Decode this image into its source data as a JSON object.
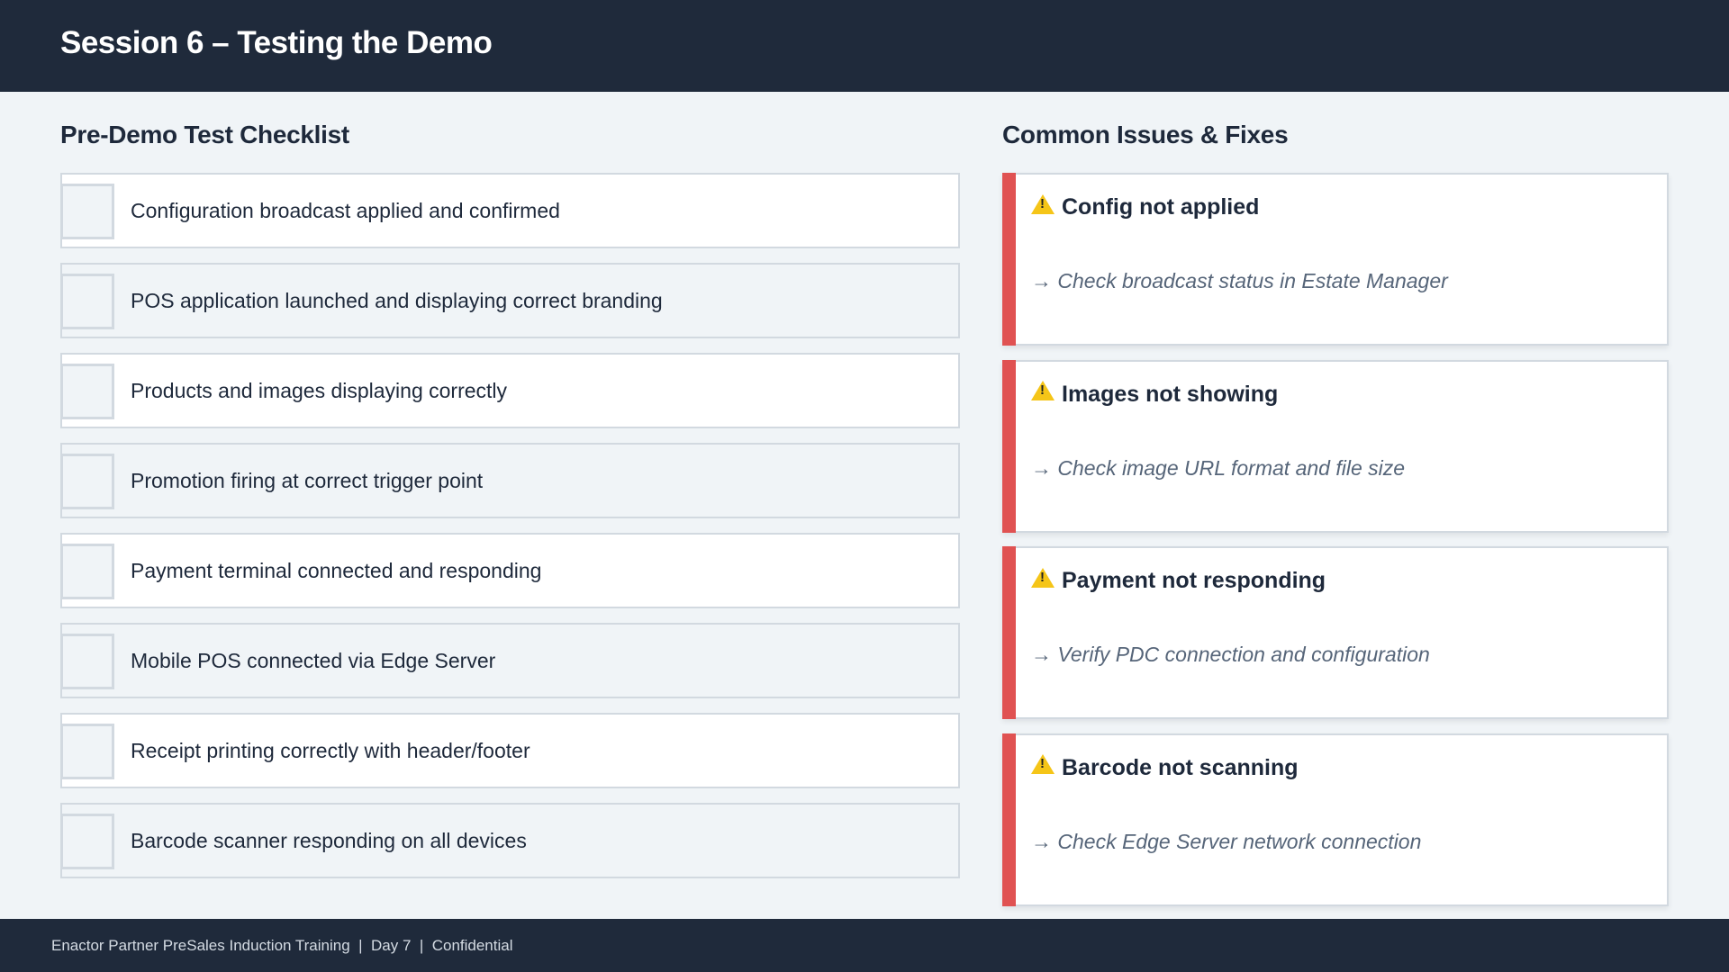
{
  "header": {
    "title": "Session 6 – Testing the Demo"
  },
  "checklist": {
    "title": "Pre-Demo Test Checklist",
    "items": [
      {
        "label": "Configuration broadcast applied and confirmed",
        "checked": false
      },
      {
        "label": "POS application launched and displaying correct branding",
        "checked": false
      },
      {
        "label": "Products and images displaying correctly",
        "checked": false
      },
      {
        "label": "Promotion firing at correct trigger point",
        "checked": false
      },
      {
        "label": "Payment terminal connected and responding",
        "checked": false
      },
      {
        "label": "Mobile POS connected via Edge Server",
        "checked": false
      },
      {
        "label": "Receipt printing correctly with header/footer",
        "checked": false
      },
      {
        "label": "Barcode scanner responding on all devices",
        "checked": false
      }
    ]
  },
  "issues": {
    "title": "Common Issues & Fixes",
    "accent_color": "#e05252",
    "icon": "warning-icon",
    "items": [
      {
        "title": "Config not applied",
        "fix": "→ Check broadcast status in Estate Manager"
      },
      {
        "title": "Images not showing",
        "fix": "→ Check image URL format and file size"
      },
      {
        "title": "Payment not responding",
        "fix": "→ Verify PDC connection and configuration"
      },
      {
        "title": "Barcode not scanning",
        "fix": "→ Check Edge Server network connection"
      }
    ]
  },
  "footer": {
    "text": "Enactor Partner PreSales Induction Training  |  Day 7  |  Confidential"
  }
}
